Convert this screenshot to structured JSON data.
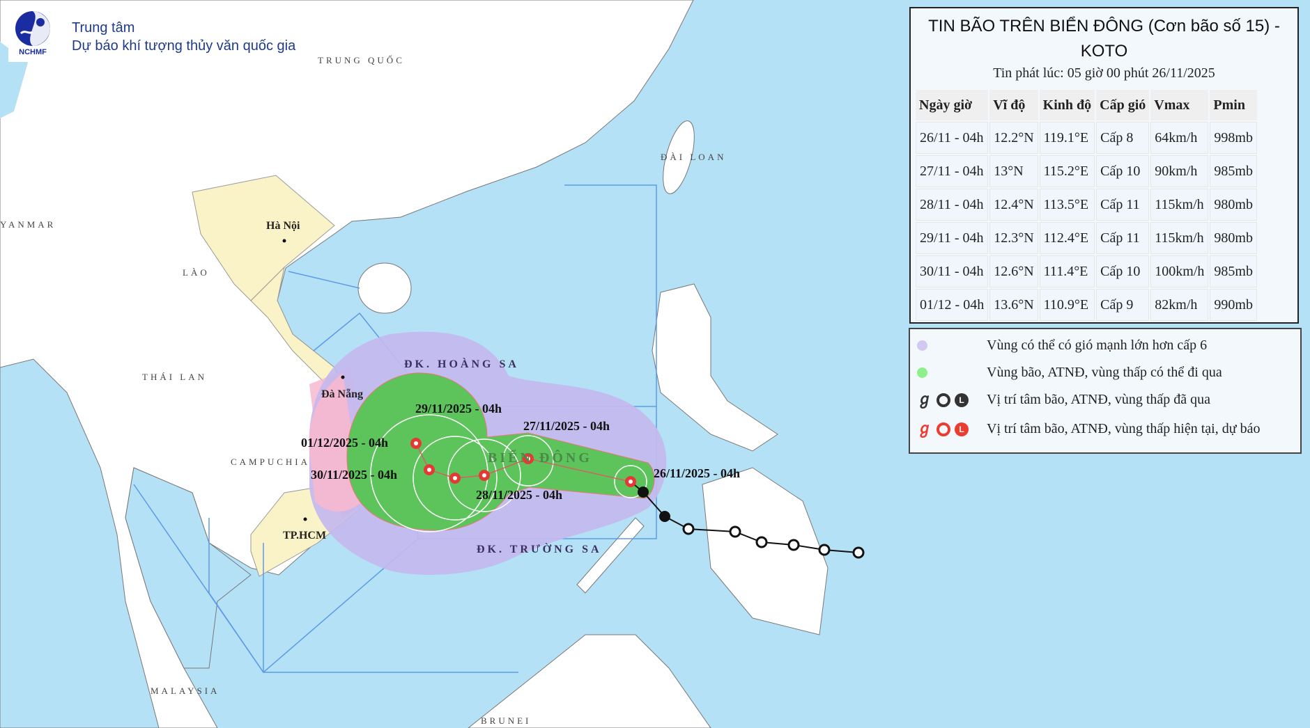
{
  "header": {
    "logo_text": "NCHMF",
    "org_line1": "Trung tâm",
    "org_line2": "Dự báo khí tượng thủy văn quốc gia"
  },
  "bulletin": {
    "title": "TIN BÃO TRÊN BIỂN ĐÔNG (Cơn bão số 15) - KOTO",
    "issued": "Tin phát lúc: 05 giờ 00 phút 26/11/2025",
    "columns": [
      "Ngày giờ",
      "Vĩ độ",
      "Kinh độ",
      "Cấp gió",
      "Vmax",
      "Pmin"
    ],
    "rows": [
      [
        "26/11 - 04h",
        "12.2°N",
        "119.1°E",
        "Cấp 8",
        "64km/h",
        "998mb"
      ],
      [
        "27/11 - 04h",
        "13°N",
        "115.2°E",
        "Cấp 10",
        "90km/h",
        "985mb"
      ],
      [
        "28/11 - 04h",
        "12.4°N",
        "113.5°E",
        "Cấp 11",
        "115km/h",
        "980mb"
      ],
      [
        "29/11 - 04h",
        "12.3°N",
        "112.4°E",
        "Cấp 11",
        "115km/h",
        "980mb"
      ],
      [
        "30/11 - 04h",
        "12.6°N",
        "111.4°E",
        "Cấp 10",
        "100km/h",
        "985mb"
      ],
      [
        "01/12 - 04h",
        "13.6°N",
        "110.9°E",
        "Cấp 9",
        "82km/h",
        "990mb"
      ]
    ]
  },
  "legend": {
    "items": [
      {
        "label": "Vùng có thể có gió mạnh lớn hơn cấp 6",
        "color": "#d3c8f2"
      },
      {
        "label": "Vùng bão, ATNĐ, vùng thấp có thể đi qua",
        "color": "#8ef08a"
      },
      {
        "label": "Vị trí tâm bão, ATNĐ, vùng thấp đã qua",
        "color": "#333333"
      },
      {
        "label": "Vị trí tâm bão, ATNĐ, vùng thấp hiện tại, dự báo",
        "color": "#ee3b2f"
      }
    ],
    "low_letter": "L"
  },
  "map": {
    "countries": [
      "TRUNG QUỐC",
      "ĐÀI LOAN",
      "YANMAR",
      "LÀO",
      "THÁI LAN",
      "CAMPUCHIA",
      "MALAYSIA",
      "BRUNEI"
    ],
    "cities": [
      "Hà Nội",
      "Đà Nẵng",
      "TP.HCM"
    ],
    "seas": [
      "ĐK. HOÀNG SA",
      "ĐK. TRƯỜNG SA",
      "BIỂN ĐÔNG"
    ],
    "forecast_labels": [
      "26/11/2025 - 04h",
      "27/11/2025 - 04h",
      "28/11/2025 - 04h",
      "29/11/2025 - 04h",
      "30/11/2025 - 04h",
      "01/12/2025 - 04h"
    ],
    "colors": {
      "sea": "#b5e1f7",
      "land": "#ffffff",
      "vietnam": "#fbf3c8",
      "wind_zone": "#c4b8ee",
      "storm_zone": "#5cc45a",
      "forecast": "#e53935",
      "past": "#111111"
    }
  }
}
